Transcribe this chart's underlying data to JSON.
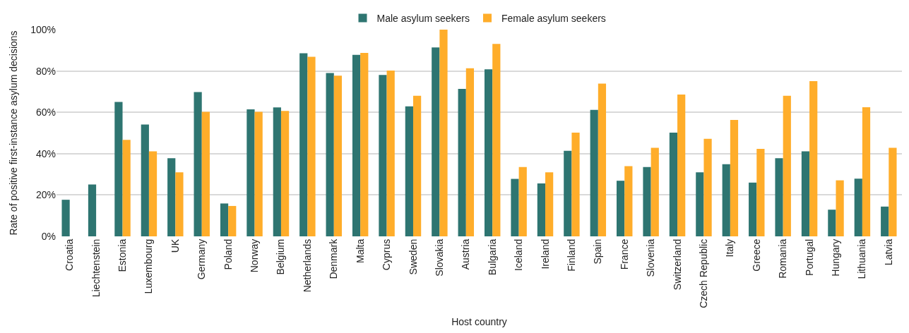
{
  "chart_data": {
    "type": "bar",
    "xlabel": "Host country",
    "ylabel": "Rate of positive first-instance asylum decisions",
    "categories": [
      "Croatia",
      "Liechtenstein",
      "Estonia",
      "Luxembourg",
      "UK",
      "Germany",
      "Poland",
      "Norway",
      "Belgium",
      "Netherlands",
      "Denmark",
      "Malta",
      "Cyprus",
      "Sweden",
      "Slovakia",
      "Austria",
      "Bulgaria",
      "Iceland",
      "Ireland",
      "Finland",
      "Spain",
      "France",
      "Slovenia",
      "Switzerland",
      "Czech Republic",
      "Italy",
      "Greece",
      "Romania",
      "Portugal",
      "Hungary",
      "Lithuania",
      "Latvia"
    ],
    "series": [
      {
        "name": "Male asylum seekers",
        "color": "#2e7571",
        "values": [
          17.7,
          25.1,
          65.0,
          54.1,
          37.8,
          69.8,
          15.9,
          61.4,
          62.4,
          88.6,
          79.0,
          87.8,
          78.1,
          62.9,
          91.4,
          71.3,
          80.8,
          27.8,
          25.6,
          41.4,
          61.2,
          26.9,
          33.5,
          50.2,
          31.0,
          34.9,
          26.0,
          37.8,
          41.1,
          12.9,
          27.9,
          14.4
        ]
      },
      {
        "name": "Female asylum seekers",
        "color": "#ffad2a",
        "values": [
          null,
          null,
          46.7,
          41.1,
          31.0,
          60.2,
          14.7,
          60.2,
          60.7,
          86.9,
          77.7,
          88.7,
          80.2,
          68.0,
          100,
          81.3,
          93.1,
          33.5,
          31.0,
          50.2,
          73.9,
          34.0,
          42.8,
          68.6,
          47.2,
          56.3,
          42.3,
          68.0,
          75.1,
          27.1,
          62.5,
          42.8
        ]
      }
    ],
    "ylim": [
      0,
      100
    ],
    "yticks": [
      {
        "value": 0,
        "label": "0%"
      },
      {
        "value": 20,
        "label": "20%"
      },
      {
        "value": 40,
        "label": "40%"
      },
      {
        "value": 60,
        "label": "60%"
      },
      {
        "value": 80,
        "label": "80%"
      },
      {
        "value": 100,
        "label": "100%"
      }
    ],
    "grid": "y",
    "legend": "top"
  }
}
